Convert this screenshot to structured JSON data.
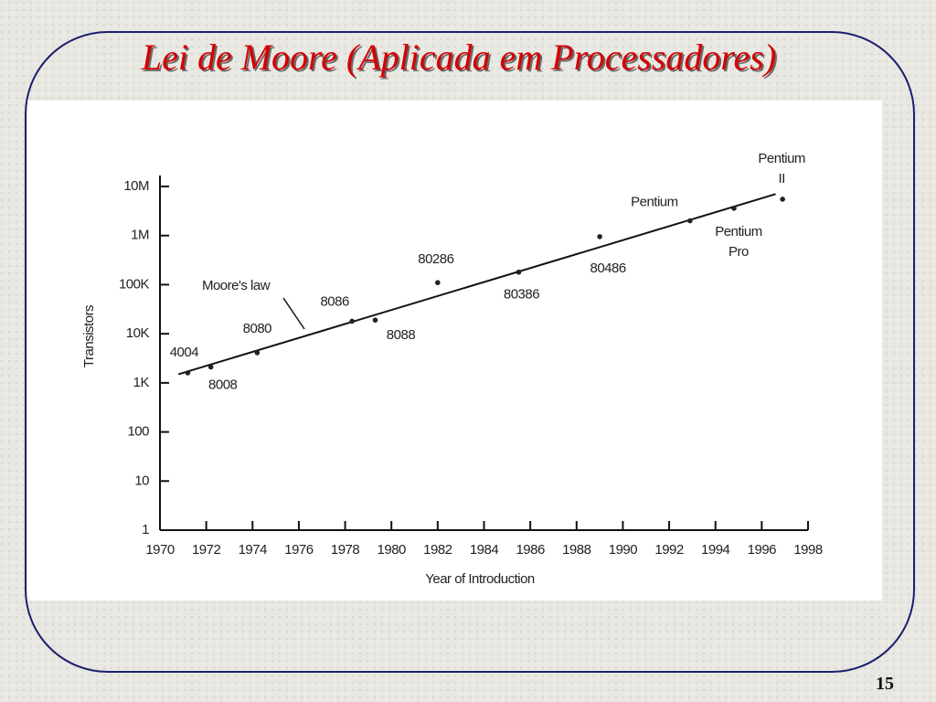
{
  "slide_title": "Lei de Moore (Aplicada em Processadores)",
  "page_number": "15",
  "chart_data": {
    "type": "scatter",
    "x_label": "Year of Introduction",
    "y_label": "Transistors",
    "y_log": true,
    "xlim": [
      1970,
      1998
    ],
    "xticks": [
      1970,
      1972,
      1974,
      1976,
      1978,
      1980,
      1982,
      1984,
      1986,
      1988,
      1990,
      1992,
      1994,
      1996,
      1998
    ],
    "ylim": [
      1,
      10000000
    ],
    "yticks": [
      1,
      10,
      100,
      {
        "value": 1000,
        "label": "1K"
      },
      {
        "value": 10000,
        "label": "10K"
      },
      {
        "value": 100000,
        "label": "100K"
      },
      {
        "value": 1000000,
        "label": "1M"
      },
      {
        "value": 10000000,
        "label": "10M"
      }
    ],
    "color": "#222222",
    "labels": [
      [
        "4004"
      ],
      [
        "8008"
      ],
      [
        "8080"
      ],
      [
        "8086"
      ],
      [
        "8088"
      ],
      [
        "80286"
      ],
      [
        "80386"
      ],
      [
        "80486"
      ],
      [
        "Pentium"
      ],
      [
        "Pentium",
        "Pro"
      ],
      [
        "Pentium",
        "II"
      ]
    ],
    "x": [
      1971.2,
      1972.2,
      1974.2,
      1978.3,
      1979.3,
      1982,
      1985.5,
      1989,
      1992.9,
      1994.8,
      1996.9
    ],
    "values": [
      1600,
      2100,
      4100,
      18000,
      19000,
      110000,
      180000,
      950000,
      2000000,
      3600000,
      5500000
    ],
    "trend": {
      "label": "Moore's law",
      "x": [
        1970.8,
        1996.6
      ],
      "values": [
        1500,
        7000000
      ]
    }
  }
}
